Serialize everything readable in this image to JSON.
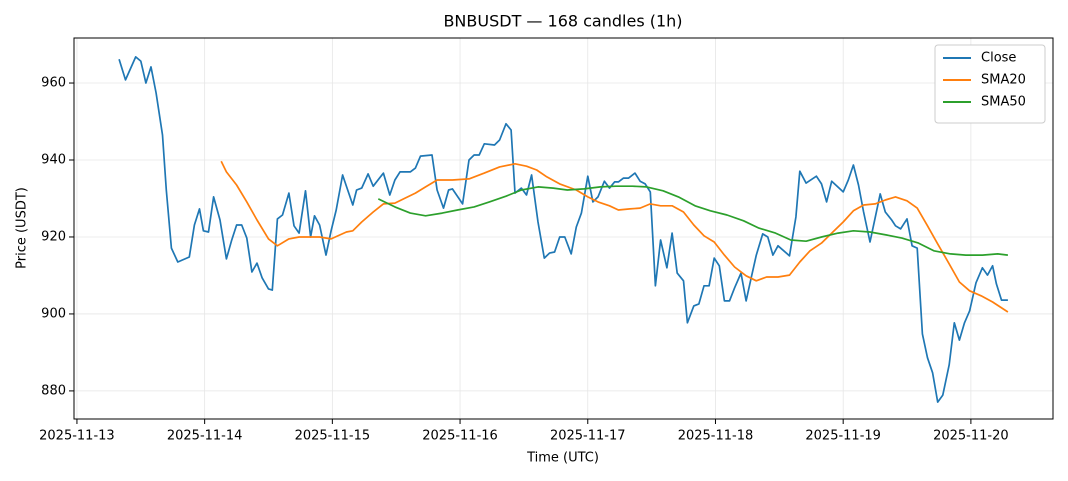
{
  "chart_data": {
    "type": "line",
    "title": "BNBUSDT — 168 candles (1h)",
    "x_label": "Time (UTC)",
    "y_label": "Price (USDT)",
    "xlim": [
      -0.023,
      7.643
    ],
    "ylim": [
      872.7,
      971.7
    ],
    "xticks": [
      {
        "value": 0,
        "label": "2025-11-13"
      },
      {
        "value": 1,
        "label": "2025-11-14"
      },
      {
        "value": 2,
        "label": "2025-11-15"
      },
      {
        "value": 3,
        "label": "2025-11-16"
      },
      {
        "value": 4,
        "label": "2025-11-17"
      },
      {
        "value": 5,
        "label": "2025-11-18"
      },
      {
        "value": 6,
        "label": "2025-11-19"
      },
      {
        "value": 7,
        "label": "2025-11-20"
      }
    ],
    "yticks": [
      880,
      900,
      920,
      940,
      960
    ],
    "grid": true,
    "legend": "upper right",
    "series": [
      {
        "name": "Close",
        "color": "#1f77b4",
        "x": [
          0.33,
          0.38,
          0.46,
          0.5,
          0.54,
          0.58,
          0.62,
          0.67,
          0.7,
          0.74,
          0.79,
          0.88,
          0.92,
          0.96,
          0.99,
          1.03,
          1.07,
          1.12,
          1.17,
          1.21,
          1.25,
          1.29,
          1.33,
          1.37,
          1.41,
          1.45,
          1.5,
          1.53,
          1.57,
          1.61,
          1.66,
          1.7,
          1.74,
          1.79,
          1.83,
          1.86,
          1.9,
          1.95,
          1.99,
          2.03,
          2.08,
          2.12,
          2.16,
          2.19,
          2.23,
          2.28,
          2.32,
          2.4,
          2.45,
          2.49,
          2.53,
          2.61,
          2.65,
          2.69,
          2.78,
          2.82,
          2.87,
          2.91,
          2.94,
          3.02,
          3.07,
          3.11,
          3.15,
          3.19,
          3.27,
          3.31,
          3.36,
          3.4,
          3.43,
          3.48,
          3.52,
          3.56,
          3.61,
          3.66,
          3.7,
          3.74,
          3.78,
          3.82,
          3.87,
          3.91,
          3.95,
          4,
          4.04,
          4.08,
          4.13,
          4.17,
          4.21,
          4.24,
          4.28,
          4.32,
          4.37,
          4.41,
          4.45,
          4.49,
          4.53,
          4.57,
          4.62,
          4.66,
          4.7,
          4.75,
          4.78,
          4.83,
          4.87,
          4.91,
          4.95,
          4.99,
          5.03,
          5.07,
          5.11,
          5.15,
          5.2,
          5.24,
          5.28,
          5.32,
          5.37,
          5.41,
          5.45,
          5.49,
          5.58,
          5.63,
          5.66,
          5.71,
          5.79,
          5.83,
          5.87,
          5.91,
          6,
          6.04,
          6.08,
          6.12,
          6.16,
          6.21,
          6.25,
          6.29,
          6.33,
          6.38,
          6.41,
          6.45,
          6.5,
          6.54,
          6.58,
          6.62,
          6.66,
          6.7,
          6.74,
          6.78,
          6.83,
          6.87,
          6.91,
          6.95,
          6.99,
          7.04,
          7.09,
          7.13,
          7.17,
          7.2,
          7.24,
          7.29
        ],
        "values": [
          966.2,
          960.8,
          966.8,
          965.7,
          960,
          964.2,
          957.4,
          946.5,
          932.2,
          917.1,
          913.5,
          914.8,
          923.1,
          927.3,
          921.6,
          921.3,
          930.4,
          924.4,
          914.3,
          919,
          923.1,
          923.1,
          919.7,
          910.9,
          913.2,
          909.4,
          906.5,
          906.2,
          924.7,
          925.7,
          931.4,
          922.9,
          921,
          932,
          920,
          925.5,
          923.1,
          915.3,
          921.6,
          927,
          936.1,
          932.2,
          928.3,
          932.2,
          932.7,
          936.4,
          933.2,
          936.6,
          930.9,
          934.8,
          936.9,
          936.9,
          937.9,
          941,
          941.3,
          932.2,
          927.5,
          932.2,
          932.5,
          928.6,
          940,
          941.3,
          941.3,
          944.2,
          943.9,
          945.2,
          949.4,
          947.8,
          931.4,
          932.7,
          930.9,
          936.1,
          923.9,
          914.5,
          915.8,
          916.1,
          920,
          920,
          915.6,
          922.6,
          926.2,
          935.8,
          929.1,
          930.4,
          934.5,
          932.7,
          934.3,
          934.3,
          935.3,
          935.3,
          936.6,
          934.5,
          933.8,
          931.7,
          907.3,
          919.2,
          912,
          921,
          910.6,
          908.6,
          897.7,
          902.1,
          902.6,
          907.3,
          907.3,
          914.5,
          912.5,
          903.4,
          903.4,
          906.8,
          910.6,
          903.4,
          909.4,
          915.3,
          920.8,
          920,
          915.3,
          917.7,
          915.1,
          925.2,
          937.1,
          934,
          935.8,
          933.8,
          929.1,
          934.5,
          931.7,
          934.8,
          938.7,
          933.5,
          926.5,
          918.7,
          924.9,
          931.2,
          926.5,
          924.4,
          922.9,
          922.1,
          924.7,
          917.7,
          917.1,
          894.8,
          888.6,
          884.7,
          877.1,
          878.9,
          886.8,
          897.7,
          893.2,
          897.7,
          900.8,
          908.1,
          912,
          910.1,
          912.5,
          907.8,
          903.6,
          903.6
        ]
      },
      {
        "name": "SMA20",
        "color": "#ff7f0e",
        "x": [
          1.13,
          1.17,
          1.25,
          1.33,
          1.41,
          1.5,
          1.57,
          1.66,
          1.74,
          1.9,
          1.99,
          2.11,
          2.16,
          2.23,
          2.32,
          2.4,
          2.49,
          2.57,
          2.65,
          2.73,
          2.82,
          2.94,
          3.07,
          3.19,
          3.31,
          3.43,
          3.52,
          3.6,
          3.68,
          3.78,
          3.91,
          4,
          4.08,
          4.17,
          4.24,
          4.33,
          4.41,
          4.49,
          4.57,
          4.66,
          4.75,
          4.83,
          4.91,
          4.99,
          5.07,
          5.15,
          5.24,
          5.32,
          5.4,
          5.49,
          5.58,
          5.66,
          5.74,
          5.83,
          5.91,
          6,
          6.08,
          6.16,
          6.25,
          6.33,
          6.41,
          6.5,
          6.58,
          6.66,
          6.74,
          6.83,
          6.91,
          6.99,
          7.08,
          7.17,
          7.29
        ],
        "values": [
          939.7,
          936.9,
          933.5,
          929.1,
          924.4,
          919.5,
          917.7,
          919.5,
          920,
          920,
          919.5,
          921.3,
          921.6,
          923.9,
          926.5,
          928.6,
          928.8,
          930.1,
          931.4,
          933,
          934.8,
          934.8,
          935.1,
          936.6,
          938.2,
          939,
          938.4,
          937.4,
          935.6,
          933.8,
          932.2,
          930.4,
          929.1,
          928.1,
          927,
          927.3,
          927.5,
          928.6,
          928.1,
          928.1,
          926.5,
          923.1,
          920.3,
          918.7,
          915.3,
          912.2,
          909.9,
          908.6,
          909.6,
          909.6,
          910.1,
          913.5,
          916.4,
          918.4,
          921,
          923.9,
          926.8,
          928.3,
          928.6,
          929.6,
          930.4,
          929.4,
          927.5,
          922.9,
          918.2,
          913,
          908.3,
          906,
          904.7,
          903.1,
          900.5
        ]
      },
      {
        "name": "SMA50",
        "color": "#2ca02c",
        "x": [
          2.36,
          2.49,
          2.61,
          2.73,
          2.86,
          2.98,
          3.11,
          3.23,
          3.36,
          3.48,
          3.61,
          3.73,
          3.84,
          3.97,
          4.1,
          4.22,
          4.35,
          4.46,
          4.59,
          4.71,
          4.84,
          4.96,
          5.09,
          5.22,
          5.34,
          5.47,
          5.59,
          5.71,
          5.83,
          5.96,
          6.08,
          6.21,
          6.34,
          6.46,
          6.59,
          6.71,
          6.84,
          6.96,
          7.09,
          7.21,
          7.29
        ],
        "values": [
          929.9,
          927.8,
          926.2,
          925.5,
          926.2,
          927,
          927.8,
          929.1,
          930.6,
          932.2,
          933,
          932.7,
          932.2,
          932.5,
          933,
          933.2,
          933.2,
          933,
          932,
          930.4,
          928.1,
          926.8,
          925.7,
          924.2,
          922.3,
          921,
          919.2,
          918.9,
          920,
          921,
          921.6,
          921.3,
          920.5,
          919.7,
          918.4,
          916.4,
          915.6,
          915.3,
          915.3,
          915.6,
          915.3
        ]
      }
    ]
  }
}
